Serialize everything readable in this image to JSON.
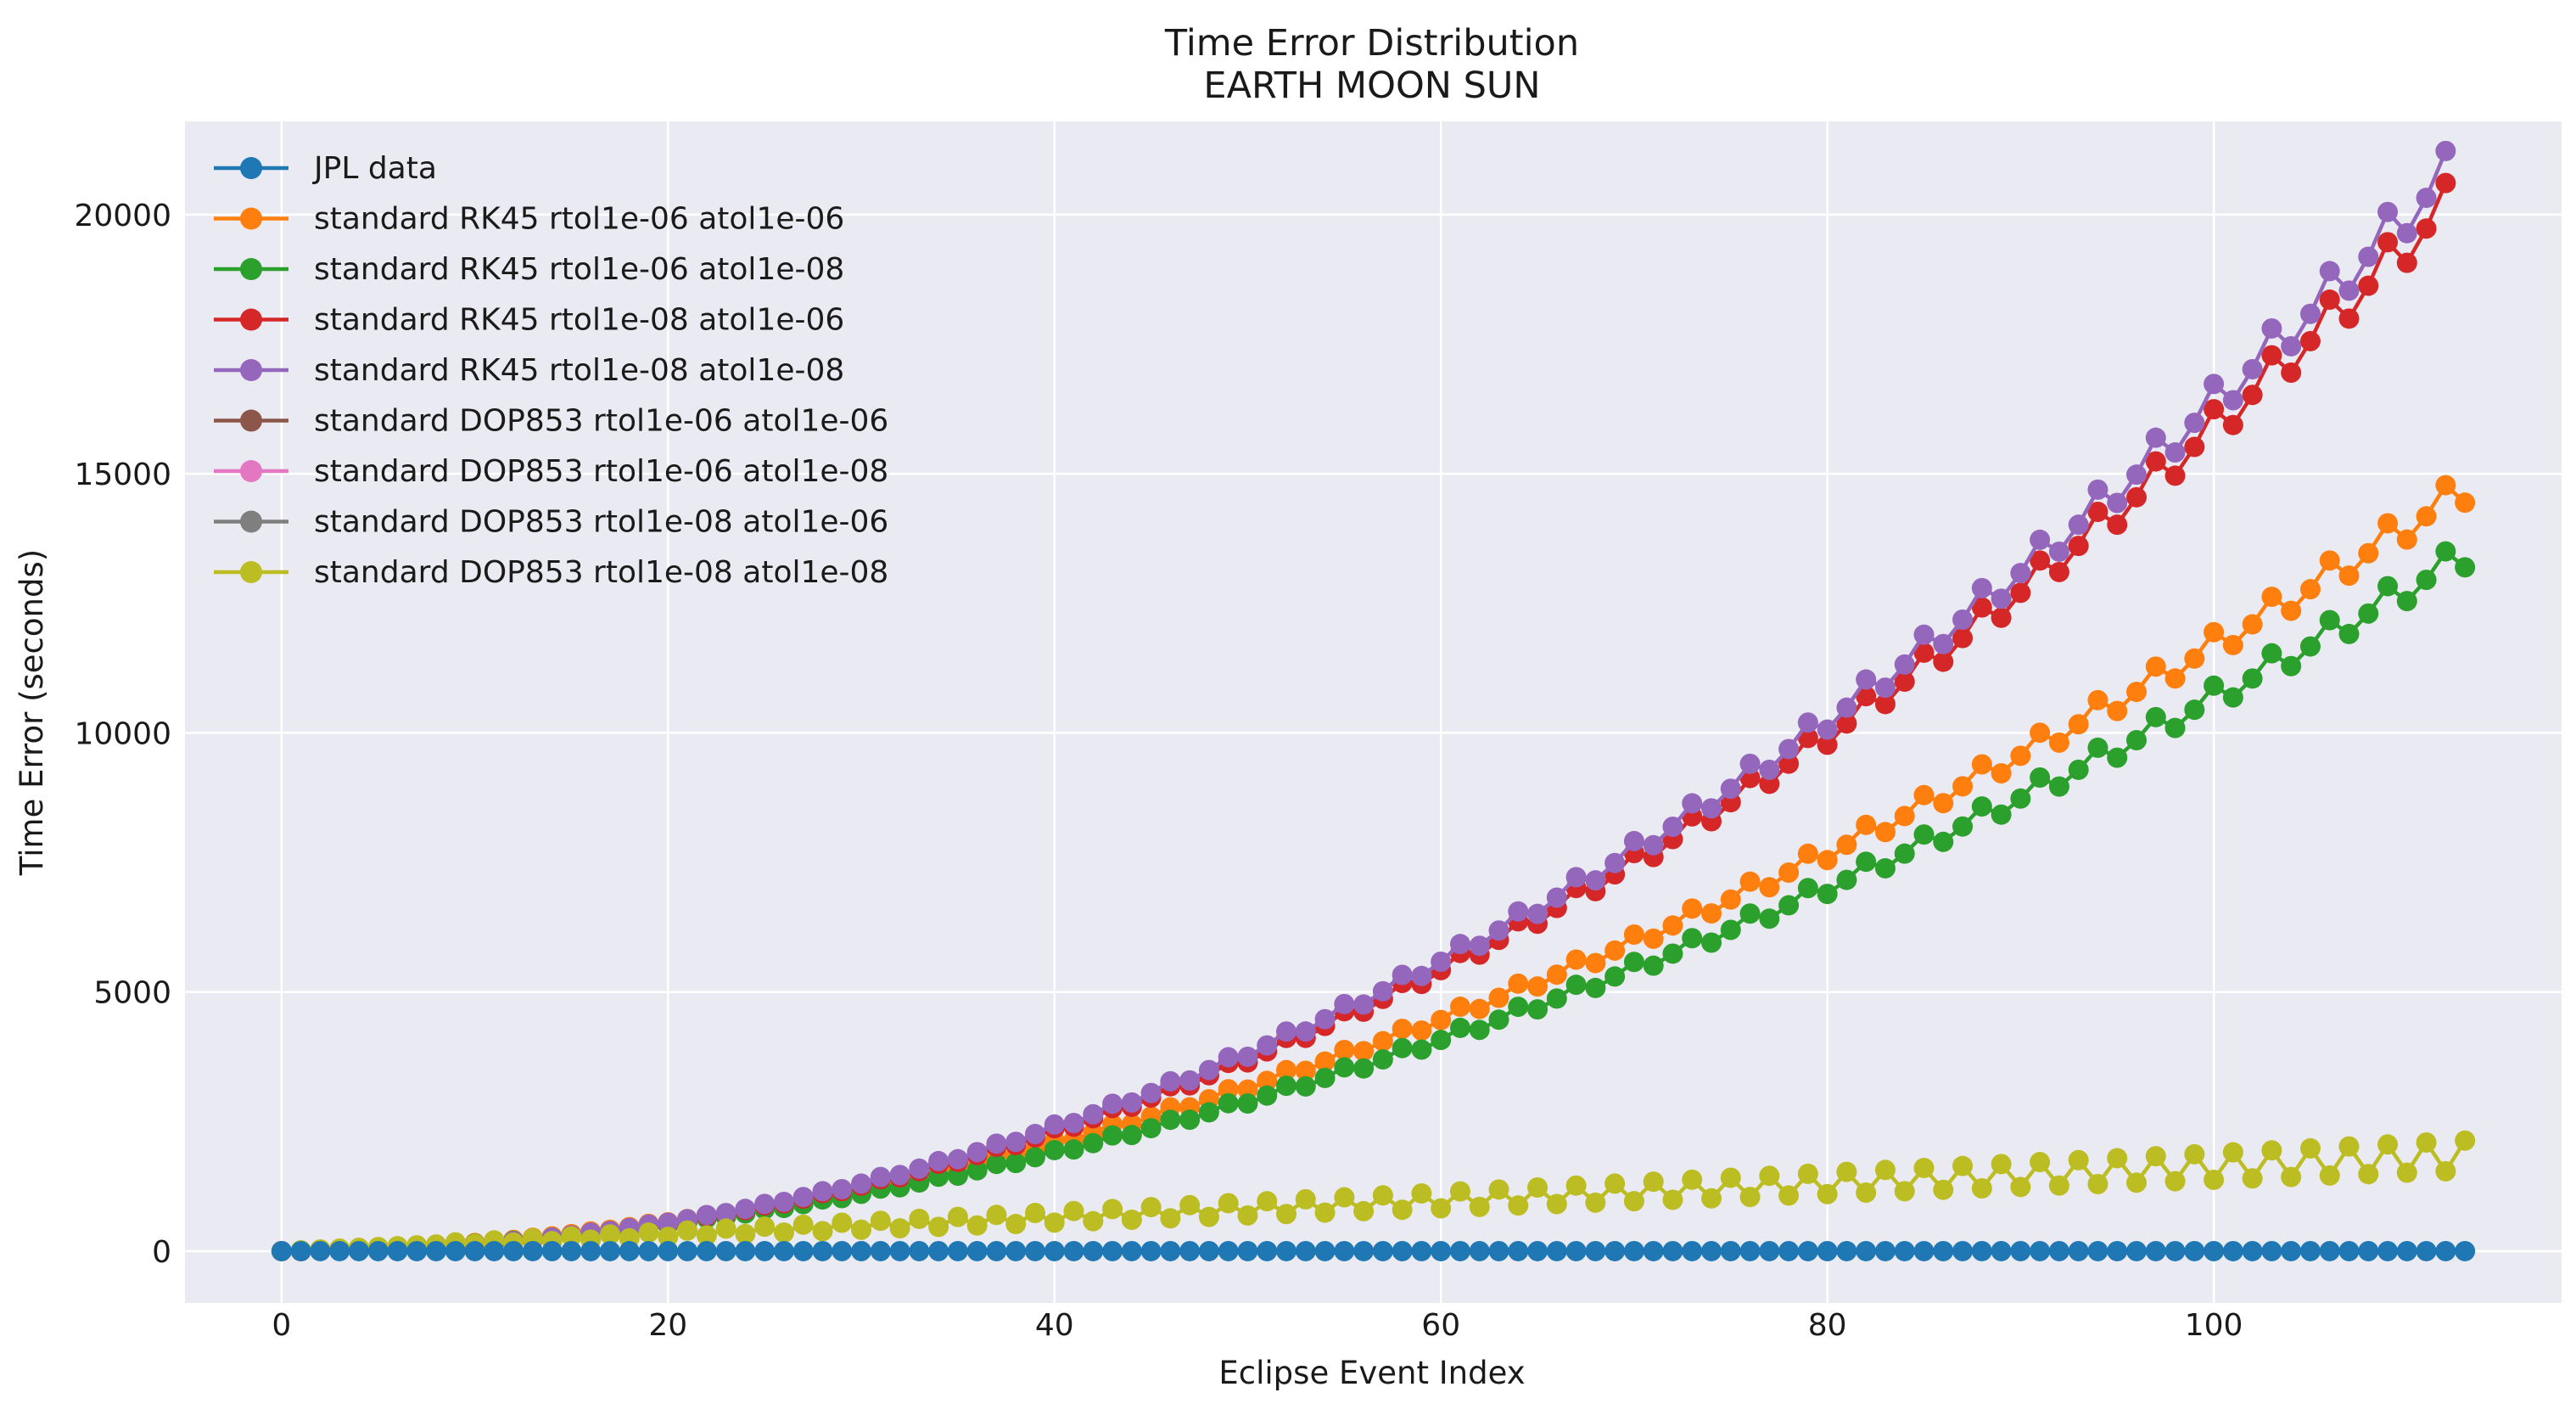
{
  "chart_data": {
    "type": "line",
    "title": "Time Error Distribution",
    "subtitle": "EARTH MOON SUN",
    "xlabel": "Eclipse Event Index",
    "ylabel": "Time Error (seconds)",
    "xlim": [
      -5,
      118
    ],
    "ylim": [
      -1000,
      21800
    ],
    "xticks": [
      0,
      20,
      40,
      60,
      80,
      100
    ],
    "yticks": [
      0,
      5000,
      10000,
      15000,
      20000
    ],
    "grid": true,
    "legend_position": "top-left",
    "marker": "circle",
    "series": [
      {
        "name": "JPL data",
        "color": "#1f77b4",
        "model": "zero",
        "n": 114
      },
      {
        "name": "standard RK45 rtol1e-06 atol1e-06",
        "color": "#ff7f0e",
        "model": "power",
        "amp": 2.025,
        "exp": 1.88,
        "n": 114
      },
      {
        "name": "standard RK45 rtol1e-06 atol1e-08",
        "color": "#2ca02c",
        "model": "power",
        "amp": 1.85,
        "exp": 1.88,
        "n": 114
      },
      {
        "name": "standard RK45 rtol1e-08 atol1e-06",
        "color": "#d62728",
        "model": "power",
        "amp": 1.0,
        "exp": 2.1,
        "n": 113
      },
      {
        "name": "standard RK45 rtol1e-08 atol1e-08",
        "color": "#9467bd",
        "model": "power",
        "amp": 1.03,
        "exp": 2.1,
        "n": 113
      },
      {
        "name": "standard DOP853 rtol1e-06 atol1e-06",
        "color": "#8c564b",
        "model": "hidden",
        "n": 114
      },
      {
        "name": "standard DOP853 rtol1e-06 atol1e-08",
        "color": "#e377c2",
        "model": "hidden",
        "n": 114
      },
      {
        "name": "standard DOP853 rtol1e-08 atol1e-06",
        "color": "#7f7f7f",
        "model": "hidden",
        "n": 114
      },
      {
        "name": "standard DOP853 rtol1e-08 atol1e-08",
        "color": "#bcbd22",
        "model": "linear",
        "slope": 16,
        "n": 114
      }
    ]
  }
}
